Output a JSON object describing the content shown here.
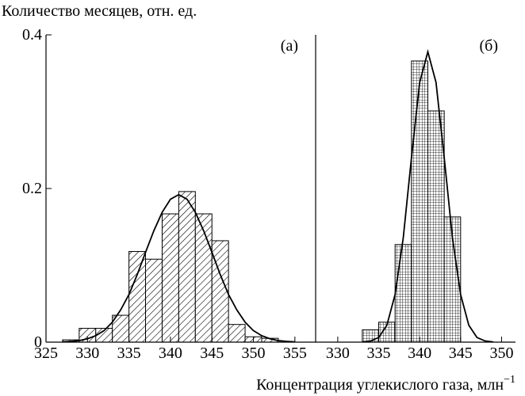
{
  "chart_data": [
    {
      "type": "histogram",
      "label": "(а)",
      "y_label": "Количество месяцев, отн. ед.",
      "bins": [
        327,
        329,
        331,
        333,
        335,
        337,
        339,
        341,
        343,
        345,
        347,
        349,
        351,
        353
      ],
      "values": [
        0.003,
        0.018,
        0.018,
        0.035,
        0.118,
        0.108,
        0.167,
        0.196,
        0.167,
        0.132,
        0.023,
        0.007,
        0.005
      ],
      "pattern": "hatch",
      "color": "#000000",
      "curve": {
        "x": [
          327,
          328,
          329,
          330,
          331,
          332,
          333,
          334,
          335,
          336,
          337,
          338,
          339,
          340,
          341,
          342,
          343,
          344,
          345,
          346,
          347,
          348,
          349,
          350,
          351,
          352,
          353,
          354,
          355
        ],
        "y": [
          0.0004,
          0.001,
          0.002,
          0.0044,
          0.0084,
          0.015,
          0.026,
          0.042,
          0.062,
          0.088,
          0.117,
          0.145,
          0.169,
          0.186,
          0.192,
          0.186,
          0.169,
          0.145,
          0.117,
          0.088,
          0.062,
          0.042,
          0.026,
          0.015,
          0.0084,
          0.0044,
          0.002,
          0.001,
          0.0004
        ]
      },
      "xlim": [
        325,
        357.5
      ],
      "xticks": [
        325,
        330,
        335,
        340,
        345,
        350,
        355
      ],
      "ylim": [
        0,
        0.4
      ],
      "yticks": [
        0,
        0.2,
        0.4
      ]
    },
    {
      "type": "histogram",
      "label": "(б)",
      "x_label": "Концентрация углекислого газа, млн",
      "x_label_sup": "−1",
      "bins": [
        333,
        335,
        337,
        339,
        341,
        343,
        345
      ],
      "values": [
        0.016,
        0.026,
        0.127,
        0.366,
        0.301,
        0.163
      ],
      "pattern": "grid",
      "color": "#000000",
      "curve": {
        "x": [
          333,
          334,
          335,
          336,
          337,
          338,
          339,
          340,
          341,
          342,
          343,
          344,
          345,
          346,
          347,
          348,
          349
        ],
        "y": [
          0.0003,
          0.0015,
          0.006,
          0.022,
          0.062,
          0.136,
          0.24,
          0.338,
          0.378,
          0.338,
          0.24,
          0.136,
          0.062,
          0.022,
          0.006,
          0.0015,
          0.0003
        ]
      },
      "xlim": [
        327.3,
        351.7
      ],
      "xticks": [
        330,
        335,
        340,
        345,
        350
      ],
      "ylim": [
        0,
        0.4
      ]
    }
  ]
}
